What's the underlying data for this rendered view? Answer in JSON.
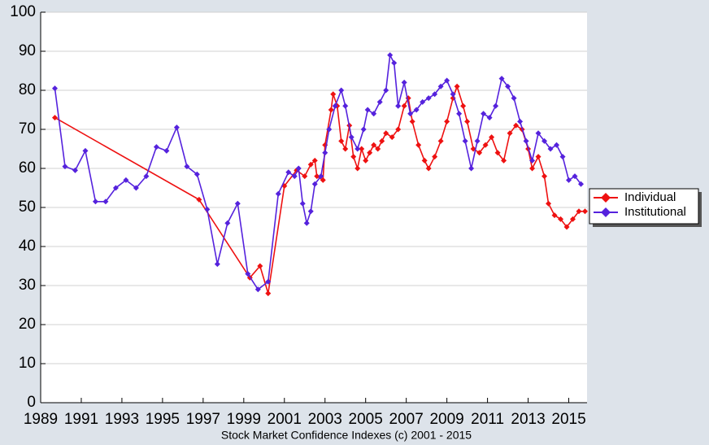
{
  "chart_data": {
    "type": "line",
    "xlabel": "Stock Market Confidence Indexes (c) 2001 - 2015",
    "xlim": [
      1989,
      2015.9
    ],
    "xticks": [
      1989,
      1991,
      1993,
      1995,
      1997,
      1999,
      2001,
      2003,
      2005,
      2007,
      2009,
      2011,
      2013,
      2015
    ],
    "ylim": [
      0,
      100
    ],
    "yticks": [
      0,
      10,
      20,
      30,
      40,
      50,
      60,
      70,
      80,
      90,
      100
    ],
    "grid": true,
    "legend": "right",
    "series": [
      {
        "name": "Individual",
        "color": "#ee1111",
        "x": [
          1989.7,
          1996.8,
          1999.3,
          1999.8,
          2000.2,
          2001.0,
          2001.6,
          2002.0,
          2002.3,
          2002.5,
          2002.6,
          2002.9,
          2003.0,
          2003.3,
          2003.4,
          2003.6,
          2003.8,
          2004.0,
          2004.2,
          2004.4,
          2004.6,
          2004.8,
          2005.0,
          2005.2,
          2005.4,
          2005.6,
          2005.8,
          2006.0,
          2006.3,
          2006.6,
          2006.9,
          2007.1,
          2007.3,
          2007.6,
          2007.9,
          2008.1,
          2008.4,
          2008.7,
          2009.0,
          2009.3,
          2009.5,
          2009.8,
          2010.0,
          2010.3,
          2010.6,
          2010.9,
          2011.2,
          2011.5,
          2011.8,
          2012.1,
          2012.4,
          2012.7,
          2013.0,
          2013.2,
          2013.5,
          2013.8,
          2014.0,
          2014.3,
          2014.6,
          2014.9,
          2015.2,
          2015.5,
          2015.8
        ],
        "values": [
          73,
          52,
          32,
          35,
          28,
          55.5,
          59.5,
          58,
          61,
          62,
          58,
          57,
          66,
          75,
          79,
          76,
          67,
          65,
          71,
          63,
          60,
          65,
          62,
          64,
          66,
          65,
          67,
          69,
          68,
          70,
          76,
          78,
          72,
          66,
          62,
          60,
          63,
          67,
          72,
          78,
          81,
          76,
          72,
          65,
          64,
          66,
          68,
          64,
          62,
          69,
          71,
          70,
          65,
          60,
          63,
          58,
          51,
          48,
          47,
          45,
          47,
          49,
          49
        ]
      },
      {
        "name": "Institutional",
        "color": "#5522dd",
        "x": [
          1989.7,
          1990.2,
          1990.7,
          1991.2,
          1991.7,
          1992.2,
          1992.7,
          1993.2,
          1993.7,
          1994.2,
          1994.7,
          1995.2,
          1995.7,
          1996.2,
          1996.7,
          1997.2,
          1997.7,
          1998.2,
          1998.7,
          1999.2,
          1999.7,
          2000.2,
          2000.7,
          2001.2,
          2001.5,
          2001.7,
          2001.9,
          2002.1,
          2002.3,
          2002.5,
          2002.8,
          2003.0,
          2003.2,
          2003.5,
          2003.8,
          2004.0,
          2004.3,
          2004.6,
          2004.9,
          2005.1,
          2005.4,
          2005.7,
          2006.0,
          2006.2,
          2006.4,
          2006.6,
          2006.9,
          2007.2,
          2007.5,
          2007.8,
          2008.1,
          2008.4,
          2008.7,
          2009.0,
          2009.3,
          2009.6,
          2009.9,
          2010.2,
          2010.5,
          2010.8,
          2011.1,
          2011.4,
          2011.7,
          2012.0,
          2012.3,
          2012.6,
          2012.9,
          2013.2,
          2013.5,
          2013.8,
          2014.1,
          2014.4,
          2014.7,
          2015.0,
          2015.3,
          2015.6
        ],
        "values": [
          80.5,
          60.5,
          59.5,
          64.5,
          51.5,
          51.5,
          55,
          57,
          55,
          58,
          65.5,
          64.5,
          70.5,
          60.5,
          58.5,
          49.5,
          35.5,
          46,
          51,
          33,
          29,
          31,
          53.5,
          59,
          58,
          60,
          51,
          46,
          49,
          56,
          58,
          64,
          70,
          76,
          80,
          76,
          68,
          65,
          70,
          75,
          74,
          77,
          80,
          89,
          87,
          76,
          82,
          74,
          75,
          77,
          78,
          79,
          81,
          82.5,
          79,
          74,
          67,
          60,
          67,
          74,
          73,
          76,
          83,
          81,
          78,
          72,
          67,
          62,
          69,
          67,
          65,
          66,
          63,
          57,
          58,
          56
        ]
      }
    ]
  }
}
